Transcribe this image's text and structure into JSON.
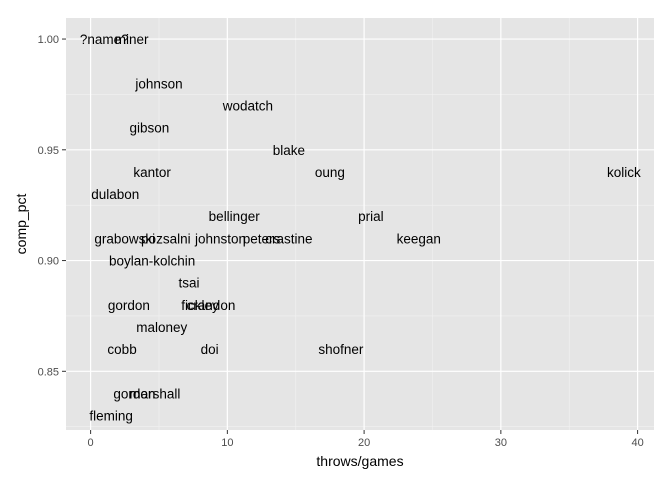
{
  "chart_data": {
    "type": "scatter",
    "title": "",
    "xlabel": "throws/games",
    "ylabel": "comp_pct",
    "xlim": [
      -1.8,
      41.2
    ],
    "ylim": [
      0.8235,
      1.0095
    ],
    "x_ticks": [
      0,
      10,
      20,
      30,
      40
    ],
    "y_ticks": [
      0.85,
      0.9,
      0.95,
      1.0
    ],
    "x_tick_labels": [
      "0",
      "10",
      "20",
      "30",
      "40"
    ],
    "y_tick_labels": [
      "0.85",
      "0.90",
      "0.95",
      "1.00"
    ],
    "grid": true,
    "colors": {
      "panel": "#e5e5e5",
      "grid_major": "#ffffff",
      "grid_minor": "#f2f2f2",
      "text": "#000000",
      "tick_text": "#4d4d4d"
    },
    "points": [
      {
        "label": "?name?",
        "x": 1.0,
        "y": 1.0
      },
      {
        "label": "miner",
        "x": 3.0,
        "y": 1.0
      },
      {
        "label": "johnson",
        "x": 5.0,
        "y": 0.98
      },
      {
        "label": "wodatch",
        "x": 11.5,
        "y": 0.97
      },
      {
        "label": "gibson",
        "x": 4.3,
        "y": 0.96
      },
      {
        "label": "blake",
        "x": 14.5,
        "y": 0.95
      },
      {
        "label": "kantor",
        "x": 4.5,
        "y": 0.94
      },
      {
        "label": "oung",
        "x": 17.5,
        "y": 0.94
      },
      {
        "label": "kolick",
        "x": 39.0,
        "y": 0.94
      },
      {
        "label": "dulabon",
        "x": 1.8,
        "y": 0.93
      },
      {
        "label": "bellinger",
        "x": 10.5,
        "y": 0.92
      },
      {
        "label": "prial",
        "x": 20.5,
        "y": 0.92
      },
      {
        "label": "grabowski",
        "x": 2.5,
        "y": 0.91
      },
      {
        "label": "pozsalni",
        "x": 5.5,
        "y": 0.91
      },
      {
        "label": "johnston",
        "x": 9.5,
        "y": 0.91
      },
      {
        "label": "peters",
        "x": 12.5,
        "y": 0.91
      },
      {
        "label": "crastine",
        "x": 14.5,
        "y": 0.91
      },
      {
        "label": "keegan",
        "x": 24.0,
        "y": 0.91
      },
      {
        "label": "boylan-kolchin",
        "x": 4.5,
        "y": 0.9
      },
      {
        "label": "tsai",
        "x": 7.2,
        "y": 0.89
      },
      {
        "label": "gordon",
        "x": 2.8,
        "y": 0.88
      },
      {
        "label": "fickley",
        "x": 8.0,
        "y": 0.88
      },
      {
        "label": "crandon",
        "x": 8.8,
        "y": 0.88
      },
      {
        "label": "maloney",
        "x": 5.2,
        "y": 0.87
      },
      {
        "label": "cobb",
        "x": 2.3,
        "y": 0.86
      },
      {
        "label": "doi",
        "x": 8.7,
        "y": 0.86
      },
      {
        "label": "shofner",
        "x": 18.3,
        "y": 0.86
      },
      {
        "label": "gordon",
        "x": 3.2,
        "y": 0.84
      },
      {
        "label": "marshall",
        "x": 4.7,
        "y": 0.84
      },
      {
        "label": "fleming",
        "x": 1.5,
        "y": 0.83
      }
    ]
  }
}
